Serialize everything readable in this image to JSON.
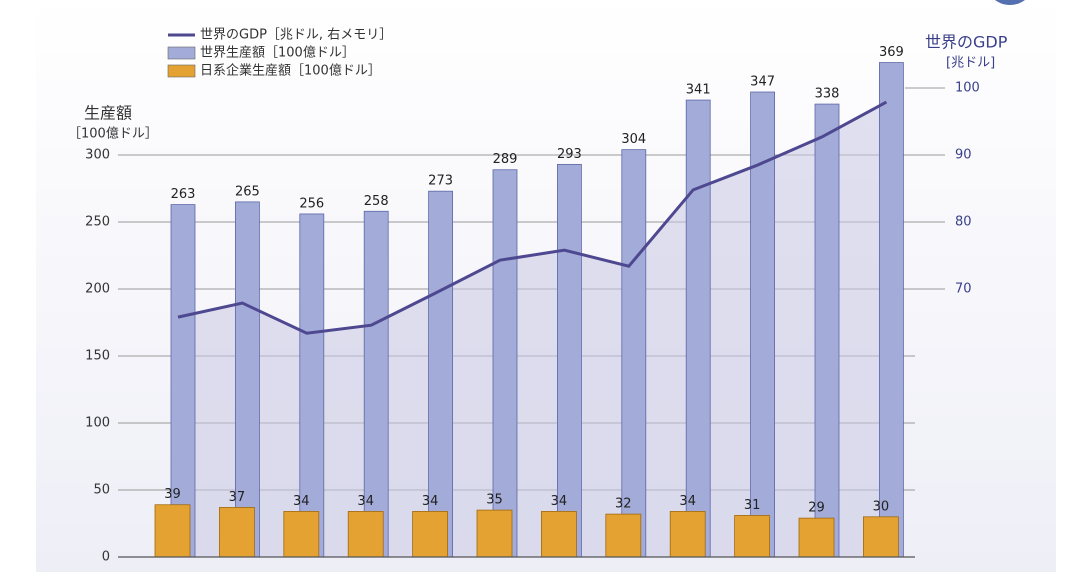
{
  "chart_data": {
    "type": "bar-line",
    "y_title": "生産額",
    "y_unit": "［100億ドル］",
    "y2_title": "世界のGDP",
    "y2_unit": "[兆ドル]",
    "categories": [
      null,
      null,
      null,
      null,
      null,
      null,
      null,
      null,
      null,
      null,
      null,
      null
    ],
    "series": [
      {
        "name": "世界のGDP［兆ドル, 右メモリ］",
        "color": "#4e4890",
        "axis": "y2",
        "kind": "line",
        "values": [
          65.8,
          67.9,
          63.4,
          64.6,
          69.4,
          74.3,
          75.8,
          73.4,
          84.8,
          88.5,
          92.7,
          97.9
        ]
      },
      {
        "name": "世界生産額［100億ドル］",
        "color": "#a3acd8",
        "kind": "bar",
        "values": [
          263,
          265,
          256,
          258,
          273,
          289,
          293,
          304,
          341,
          347,
          338,
          369
        ]
      },
      {
        "name": "日系企業生産額［100億ドル］",
        "color": "#e3a232",
        "kind": "bar",
        "values": [
          39,
          37,
          34,
          34,
          34,
          35,
          34,
          32,
          34,
          31,
          29,
          30
        ]
      }
    ],
    "ylim": [
      0,
      350
    ],
    "yticks": [
      0,
      50,
      100,
      150,
      200,
      250,
      300
    ],
    "y2lim": [
      30,
      100
    ],
    "y2ticks": [
      70,
      80,
      90,
      100
    ],
    "grid": true
  }
}
